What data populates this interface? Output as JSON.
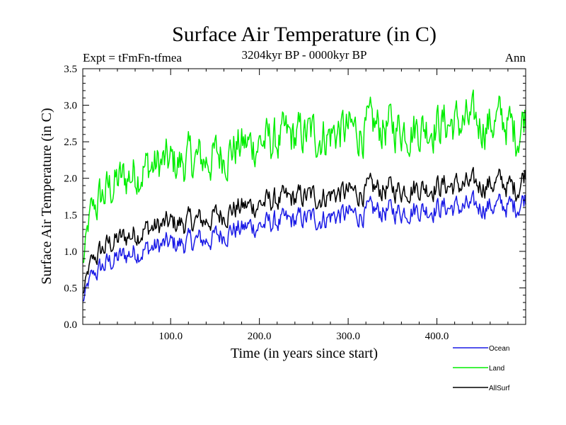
{
  "chart_data": {
    "type": "line",
    "title": "Surface Air Temperature (in C)",
    "subtitle": "3204kyr BP - 0000kyr BP",
    "expt_label": "Expt = tFmFn-tfmea",
    "season_label": "Ann",
    "xlabel": "Time (in years since start)",
    "ylabel": "Surface Air Temperature (in C)",
    "xlim": [
      1,
      500
    ],
    "ylim": [
      0.0,
      3.5
    ],
    "xticks": [
      {
        "value": 100,
        "label": "100.0"
      },
      {
        "value": 200,
        "label": "200.0"
      },
      {
        "value": 300,
        "label": "300.0"
      },
      {
        "value": 400,
        "label": "400.0"
      }
    ],
    "yticks": [
      {
        "value": 0.0,
        "label": "0.0"
      },
      {
        "value": 0.5,
        "label": "0.5"
      },
      {
        "value": 1.0,
        "label": "1.0"
      },
      {
        "value": 1.5,
        "label": "1.5"
      },
      {
        "value": 2.0,
        "label": "2.0"
      },
      {
        "value": 2.5,
        "label": "2.5"
      },
      {
        "value": 3.0,
        "label": "3.0"
      },
      {
        "value": 3.5,
        "label": "3.5"
      }
    ],
    "legend_position": "bottom-right",
    "series": [
      {
        "name": "Ocean",
        "color": "#1a1ae6",
        "x": [
          1,
          10,
          20,
          30,
          40,
          50,
          60,
          70,
          80,
          90,
          100,
          110,
          120,
          130,
          140,
          150,
          160,
          170,
          180,
          190,
          200,
          210,
          220,
          230,
          240,
          250,
          260,
          270,
          280,
          290,
          300,
          310,
          320,
          330,
          340,
          350,
          360,
          370,
          380,
          390,
          400,
          410,
          420,
          430,
          440,
          450,
          460,
          470,
          480,
          490,
          500
        ],
        "values": [
          0.3,
          0.65,
          0.75,
          0.85,
          0.9,
          0.95,
          1.0,
          1.02,
          1.05,
          1.08,
          1.1,
          1.1,
          1.12,
          1.15,
          1.15,
          1.2,
          1.25,
          1.3,
          1.3,
          1.35,
          1.35,
          1.38,
          1.4,
          1.4,
          1.42,
          1.45,
          1.45,
          1.45,
          1.48,
          1.5,
          1.5,
          1.5,
          1.52,
          1.55,
          1.55,
          1.55,
          1.55,
          1.58,
          1.58,
          1.58,
          1.6,
          1.6,
          1.6,
          1.6,
          1.6,
          1.62,
          1.62,
          1.62,
          1.62,
          1.62,
          1.75
        ]
      },
      {
        "name": "Land",
        "color": "#00ee00",
        "x": [
          1,
          10,
          20,
          30,
          40,
          50,
          60,
          70,
          80,
          90,
          100,
          110,
          120,
          130,
          140,
          150,
          160,
          170,
          180,
          190,
          200,
          210,
          220,
          230,
          240,
          250,
          260,
          270,
          280,
          290,
          300,
          310,
          320,
          330,
          340,
          350,
          360,
          370,
          380,
          390,
          400,
          410,
          420,
          430,
          440,
          450,
          460,
          470,
          480,
          490,
          500
        ],
        "values": [
          0.8,
          1.55,
          1.7,
          1.85,
          1.95,
          2.0,
          2.1,
          2.15,
          2.15,
          2.2,
          2.2,
          2.2,
          2.25,
          2.25,
          2.25,
          2.3,
          2.35,
          2.4,
          2.45,
          2.45,
          2.5,
          2.5,
          2.5,
          2.55,
          2.55,
          2.6,
          2.6,
          2.6,
          2.6,
          2.65,
          2.65,
          2.65,
          2.65,
          2.7,
          2.7,
          2.7,
          2.7,
          2.7,
          2.7,
          2.72,
          2.75,
          2.75,
          2.75,
          2.75,
          2.75,
          2.75,
          2.75,
          2.8,
          2.75,
          2.6,
          2.9
        ]
      },
      {
        "name": "AllSurf",
        "color": "#000000",
        "x": [
          1,
          10,
          20,
          30,
          40,
          50,
          60,
          70,
          80,
          90,
          100,
          110,
          120,
          130,
          140,
          150,
          160,
          170,
          180,
          190,
          200,
          210,
          220,
          230,
          240,
          250,
          260,
          270,
          280,
          290,
          300,
          310,
          320,
          330,
          340,
          350,
          360,
          370,
          380,
          390,
          400,
          410,
          420,
          430,
          440,
          450,
          460,
          470,
          480,
          490,
          500
        ],
        "values": [
          0.4,
          0.85,
          0.98,
          1.1,
          1.15,
          1.2,
          1.25,
          1.3,
          1.32,
          1.35,
          1.38,
          1.38,
          1.4,
          1.42,
          1.42,
          1.48,
          1.52,
          1.58,
          1.6,
          1.62,
          1.65,
          1.68,
          1.7,
          1.7,
          1.72,
          1.75,
          1.75,
          1.75,
          1.78,
          1.8,
          1.8,
          1.8,
          1.82,
          1.85,
          1.85,
          1.85,
          1.85,
          1.88,
          1.88,
          1.88,
          1.9,
          1.9,
          1.9,
          1.9,
          1.9,
          1.92,
          1.92,
          1.95,
          1.9,
          1.85,
          2.1
        ]
      }
    ]
  }
}
